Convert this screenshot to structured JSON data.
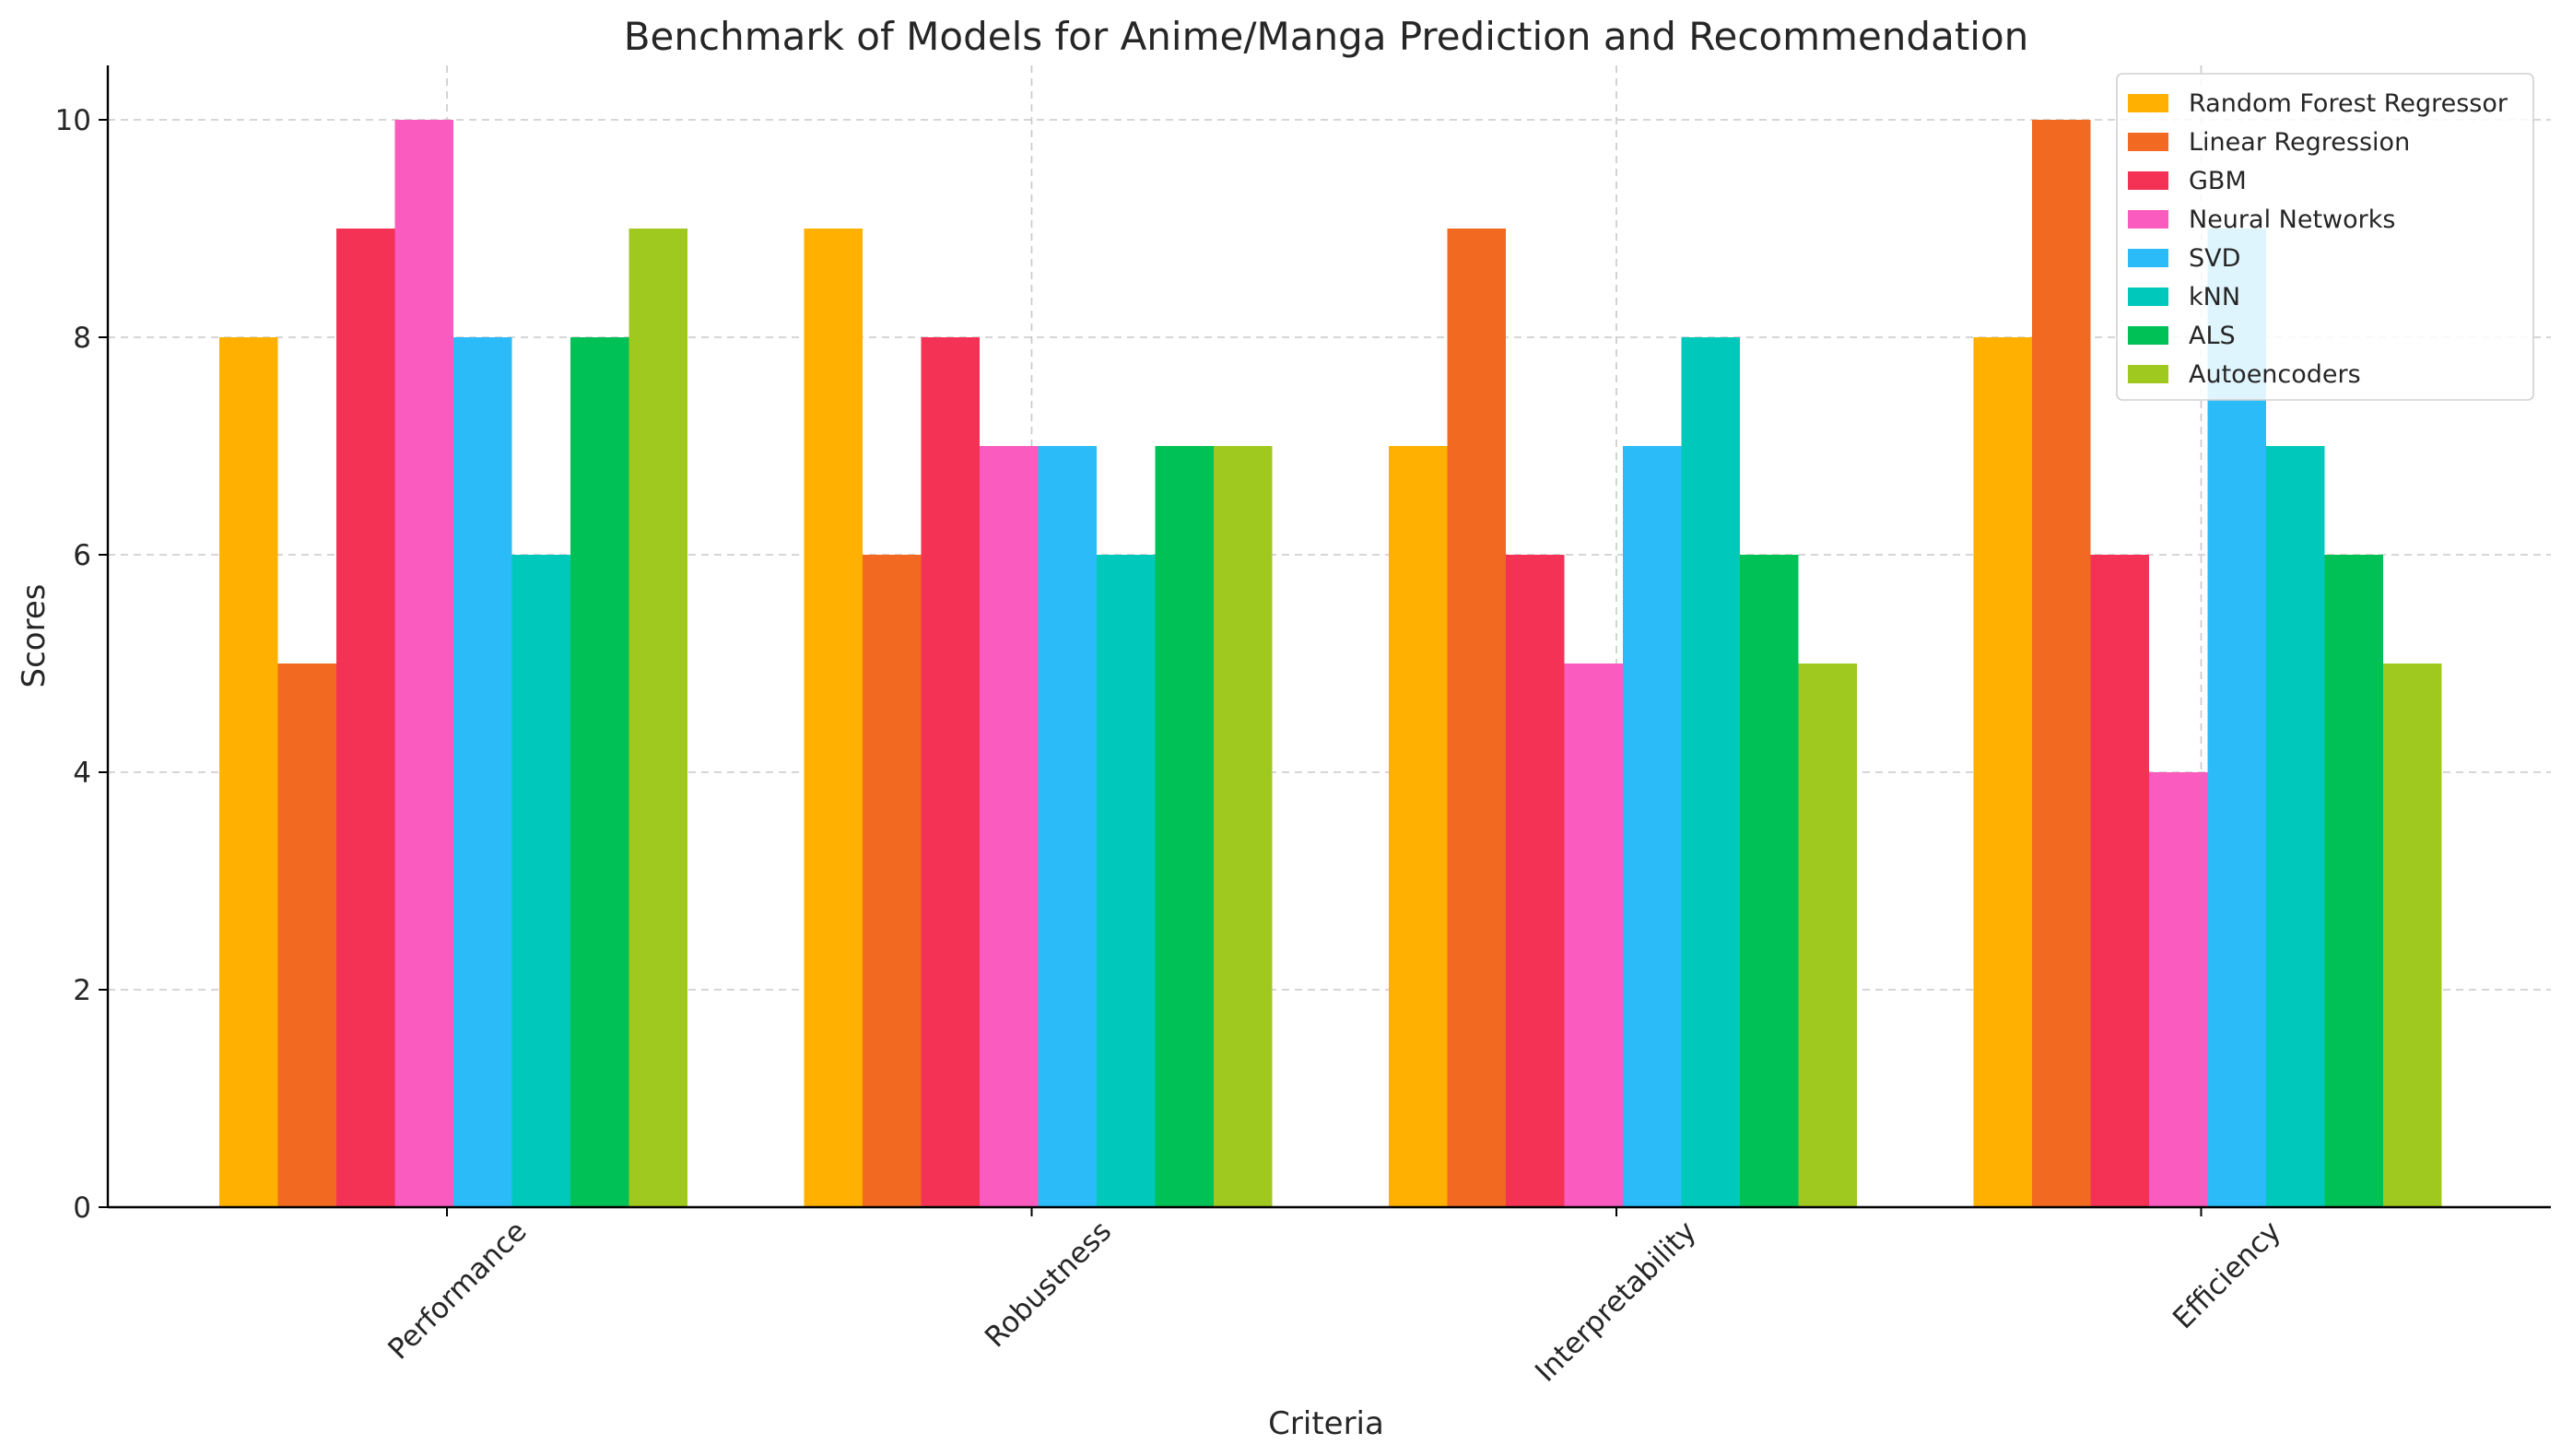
{
  "chart_data": {
    "type": "bar",
    "title": "Benchmark of Models for Anime/Manga Prediction and Recommendation",
    "xlabel": "Criteria",
    "ylabel": "Scores",
    "ylim": [
      0,
      10.5
    ],
    "yticks": [
      0,
      2,
      4,
      6,
      8,
      10
    ],
    "grid": true,
    "legend_position": "top-right",
    "categories": [
      "Performance",
      "Robustness",
      "Interpretability",
      "Efficiency"
    ],
    "series": [
      {
        "name": "Random Forest Regressor",
        "color": "#FFB000",
        "values": [
          8,
          9,
          7,
          8
        ]
      },
      {
        "name": "Linear Regression",
        "color": "#F26A21",
        "values": [
          5,
          6,
          9,
          10
        ]
      },
      {
        "name": "GBM",
        "color": "#F43256",
        "values": [
          9,
          8,
          6,
          6
        ]
      },
      {
        "name": "Neural Networks",
        "color": "#F95BBE",
        "values": [
          10,
          7,
          5,
          4
        ]
      },
      {
        "name": "SVD",
        "color": "#2BBBF9",
        "values": [
          8,
          7,
          7,
          9
        ]
      },
      {
        "name": "kNN",
        "color": "#00C9BC",
        "values": [
          6,
          6,
          8,
          7
        ]
      },
      {
        "name": "ALS",
        "color": "#00C155",
        "values": [
          8,
          7,
          6,
          6
        ]
      },
      {
        "name": "Autoencoders",
        "color": "#A0C920",
        "values": [
          9,
          7,
          5,
          5
        ]
      }
    ]
  }
}
